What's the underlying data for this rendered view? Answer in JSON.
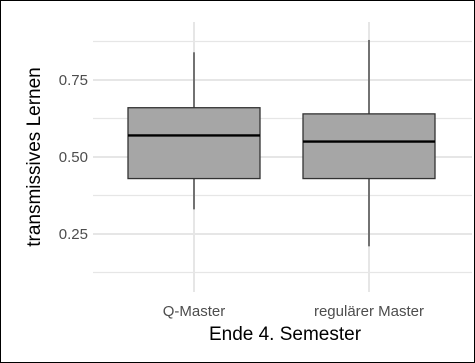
{
  "chart_data": {
    "type": "boxplot",
    "xlabel": "Ende 4. Semester",
    "ylabel": "transmissives Lernen",
    "ylim": [
      0.1,
      0.92
    ],
    "yticks": [
      0.25,
      0.5,
      0.75
    ],
    "ytick_labels": [
      "0.25",
      "0.50",
      "0.75"
    ],
    "categories": [
      "Q-Master",
      "regulärer Master"
    ],
    "boxes": [
      {
        "category": "Q-Master",
        "whisker_low": 0.33,
        "q1": 0.43,
        "median": 0.57,
        "q3": 0.66,
        "whisker_high": 0.84
      },
      {
        "category": "regulärer Master",
        "whisker_low": 0.21,
        "q1": 0.43,
        "median": 0.55,
        "q3": 0.64,
        "whisker_high": 0.88
      }
    ],
    "grid": true,
    "colors": {
      "box_fill": "#a6a6a6",
      "box_stroke": "#333333",
      "grid": "#e6e6e6",
      "median": "#000000"
    }
  }
}
